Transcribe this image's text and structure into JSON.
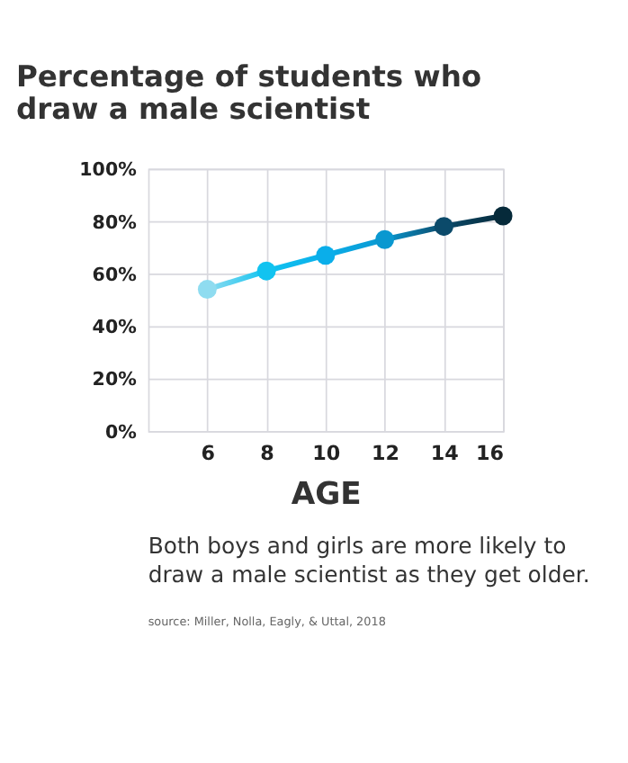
{
  "chart_data": {
    "type": "line",
    "title": "Percentage of students who draw a male scientist",
    "xlabel": "AGE",
    "x": [
      6,
      8,
      10,
      12,
      14,
      16
    ],
    "series": [
      {
        "values": [
          54,
          61,
          67,
          73,
          78,
          82
        ],
        "colors": [
          "#8fdcf0",
          "#11c3f0",
          "#0aaeea",
          "#0a98d0",
          "#0b4a6a",
          "#062a3a"
        ]
      }
    ],
    "xlim": [
      4,
      16
    ],
    "xticks": [
      6,
      8,
      10,
      12,
      14,
      16
    ],
    "ylim": [
      0,
      100
    ],
    "yticks": [
      {
        "value": 0,
        "label": "0%"
      },
      {
        "value": 20,
        "label": "20%"
      },
      {
        "value": 40,
        "label": "40%"
      },
      {
        "value": 60,
        "label": "60%"
      },
      {
        "value": 80,
        "label": "80%"
      },
      {
        "value": 100,
        "label": "100%"
      }
    ],
    "grid": true,
    "marker": "circle",
    "line_style": "solid",
    "annotations": [
      "Both boys and girls are more likely to draw a male scientist as they get older.",
      "source: Miller, Nolla, Eagly, & Uttal, 2018"
    ]
  }
}
